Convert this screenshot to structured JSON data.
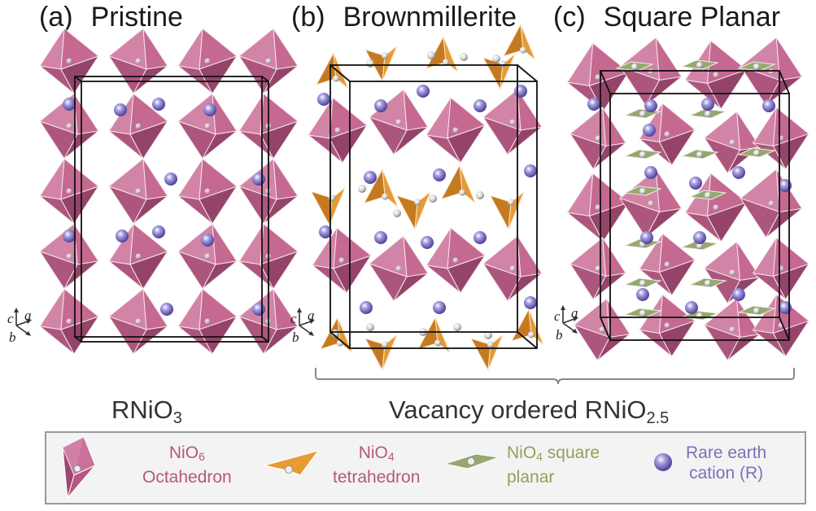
{
  "panels": [
    {
      "label": "(a)",
      "title": "Pristine"
    },
    {
      "label": "(b)",
      "title": "Brownmillerite"
    },
    {
      "label": "(c)",
      "title": "Square Planar"
    }
  ],
  "formulas": {
    "pristine": {
      "base": "RNiO",
      "sub": "3"
    },
    "vacancy": {
      "base": "Vacancy ordered RNiO",
      "sub": "2.5"
    }
  },
  "axes": {
    "c": "c",
    "a": "a",
    "b": "b"
  },
  "legend": [
    {
      "line1": "NiO",
      "sub": "6",
      "line1_after": "",
      "line2": "Octahedron",
      "color": "#b5577e",
      "icon": "octahedron-icon"
    },
    {
      "line1": "NiO",
      "sub": "4",
      "line1_after": "",
      "line2": "tetrahedron",
      "color": "#b5577e",
      "icon": "tetrahedron-icon"
    },
    {
      "line1": "NiO",
      "sub": "4",
      "line1_after": " square",
      "line2": "planar",
      "color": "#8ea35a",
      "icon": "square-planar-icon"
    },
    {
      "line1": "Rare earth",
      "sub": "",
      "line1_after": "",
      "line2": "cation (R)",
      "color": "#7f6fba",
      "icon": "rare-earth-sphere-icon"
    }
  ],
  "colors": {
    "octahedron": "#c2628c",
    "octahedron_dark": "#8f3b62",
    "tetrahedron": "#e69a35",
    "square_planar": "#96a870",
    "cation": "#8a7fd0",
    "oxygen": "#e0e0e0"
  }
}
